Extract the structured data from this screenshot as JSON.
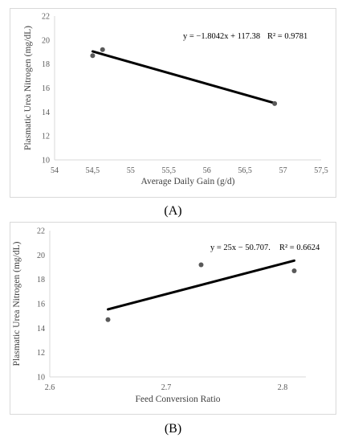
{
  "chart_data": [
    {
      "type": "scatter",
      "panel_label": "(A)",
      "xlabel": "Average Daily Gain (g/d)",
      "ylabel": "Plasmatic Urea Nitrogen (mg/dL)",
      "xlim": [
        54,
        57.5
      ],
      "ylim": [
        10,
        22
      ],
      "xticks": [
        54,
        54.5,
        55,
        55.5,
        56,
        56.5,
        57,
        57.5
      ],
      "xtick_labels": [
        "54",
        "54,5",
        "55",
        "55,5",
        "56",
        "56,5",
        "57",
        "57,5"
      ],
      "yticks": [
        10,
        12,
        14,
        16,
        18,
        20,
        22
      ],
      "ytick_labels": [
        "10",
        "12",
        "14",
        "16",
        "18",
        "20",
        "22"
      ],
      "points": [
        {
          "x": 54.5,
          "y": 18.7
        },
        {
          "x": 54.63,
          "y": 19.2
        },
        {
          "x": 56.89,
          "y": 14.7
        }
      ],
      "trendline": {
        "slope": -1.8042,
        "intercept": 117.38,
        "x_range": [
          54.5,
          56.89
        ]
      },
      "equation": "y = −1.8042x + 117.38",
      "r_squared": "R² = 0.9781",
      "grid": false
    },
    {
      "type": "scatter",
      "panel_label": "(B)",
      "xlabel": "Feed Conversion Ratio",
      "ylabel": "Plasmatic Urea Nitrogen (mg/dL)",
      "xlim": [
        2.6,
        2.82
      ],
      "ylim": [
        10,
        22
      ],
      "xticks": [
        2.6,
        2.7,
        2.8
      ],
      "xtick_labels": [
        "2.6",
        "2.7",
        "2.8"
      ],
      "yticks": [
        10,
        12,
        14,
        16,
        18,
        20,
        22
      ],
      "ytick_labels": [
        "10",
        "12",
        "14",
        "16",
        "18",
        "20",
        "22"
      ],
      "points": [
        {
          "x": 2.65,
          "y": 14.7
        },
        {
          "x": 2.73,
          "y": 19.2
        },
        {
          "x": 2.81,
          "y": 18.7
        }
      ],
      "trendline": {
        "slope": 25,
        "intercept": -50.707,
        "x_range": [
          2.65,
          2.81
        ]
      },
      "equation": "y = 25x − 50.707.",
      "r_squared": "R² = 0.6624",
      "grid": false
    }
  ],
  "colors": {
    "point": "#595959",
    "trendline": "#000000",
    "frame": "#d9d9d9",
    "axis": "#d9d9d9"
  }
}
